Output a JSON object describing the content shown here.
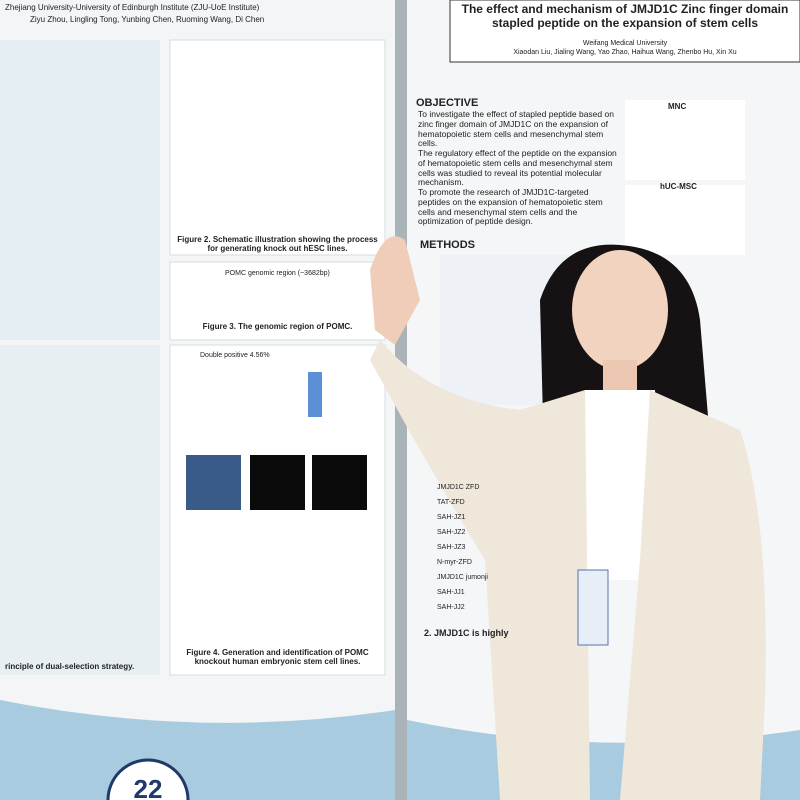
{
  "left_poster": {
    "affiliation": "Zhejiang University-University of Edinburgh Institute (ZJU-UoE Institute)",
    "authors": "Ziyu Zhou, Lingling Tong, Yunbing Chen, Ruoming Wang, Di Chen",
    "figure2_caption": "Figure 2. Schematic illustration showing the process for generating knock out hESC lines.",
    "pomc_region": "POMC genomic region (~3682bp)",
    "figure3_caption": "Figure 3. The genomic region of POMC.",
    "facs_label": "Double positive 4.56%",
    "figure4_caption": "Figure 4. Generation and identification of POMC knockout human embryonic stem cell lines.",
    "figure1_caption": "rinciple of dual-selection strategy.",
    "board_number": "22"
  },
  "right_poster": {
    "title": "The effect and mechanism of JMJD1C Zinc finger domain stapled peptide on the expansion of stem cells",
    "affiliation": "Weifang Medical University",
    "authors": "Xiaodan Liu, Jialing Wang, Yao Zhao, Haihua Wang, Zhenbo Hu, Xin Xu",
    "objective_heading": "OBJECTIVE",
    "objectives": [
      "To investigate the effect of stapled peptide based on zinc finger domain of JMJD1C on the expansion of hematopoietic stem cells and mesenchymal stem cells.",
      "The regulatory effect of the peptide on the expansion of hematopoietic stem cells and mesenchymal stem cells was studied to reveal its potential molecular mechanism.",
      "To promote the research of JMJD1C-targeted peptides on the expansion of hematopoietic stem cells and mesenchymal stem cells and the optimization of peptide design."
    ],
    "methods_heading": "METHODS",
    "chart_labels": [
      "MNC",
      "hUC-MSC"
    ],
    "table_rows": [
      "JMJD1C ZFD",
      "TAT-ZFD",
      "SAH-JZ1",
      "SAH-JZ2",
      "SAH-JZ3",
      "N-myr-ZFD",
      "JMJD1C jumonji",
      "SAH-JJ1",
      "SAH-JJ2"
    ],
    "section2_heading": "2. JMJD1C is highly"
  }
}
